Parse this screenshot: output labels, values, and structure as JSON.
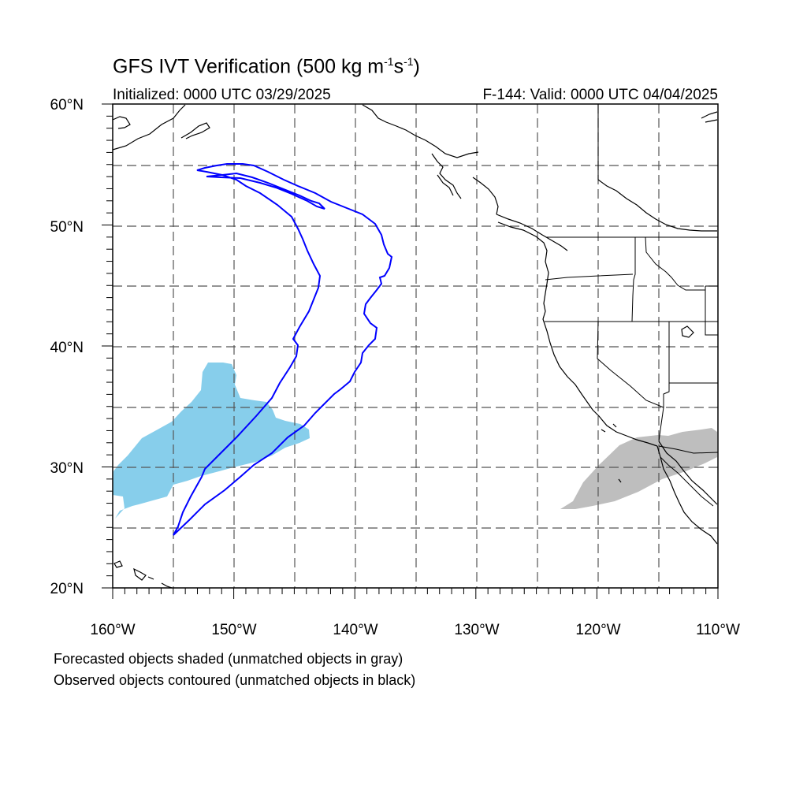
{
  "title": {
    "main": "GFS IVT Verification (500 kg m",
    "exp1": "-1",
    "mid": "s",
    "exp2": "-1",
    "close": ")"
  },
  "initialized": "Initialized: 0000 UTC 03/29/2025",
  "valid": "F-144: Valid: 0000 UTC 04/04/2025",
  "footnotes": [
    "Forecasted objects shaded (unmatched objects in gray)",
    "Observed objects contoured (unmatched objects in black)"
  ],
  "map": {
    "lon_range": [
      -160,
      -110
    ],
    "lat_range": [
      20,
      60
    ],
    "grid": true,
    "lat_labels": [
      "60°N",
      "50°N",
      "40°N",
      "30°N",
      "20°N"
    ],
    "lon_labels": [
      "160°W",
      "150°W",
      "140°W",
      "130°W",
      "120°W",
      "110°W"
    ],
    "colors": {
      "matched_forecast": "#87ceeb",
      "unmatched_forecast": "#bebebe",
      "observed_contour": "#0000ff",
      "coastline": "#000000"
    }
  }
}
